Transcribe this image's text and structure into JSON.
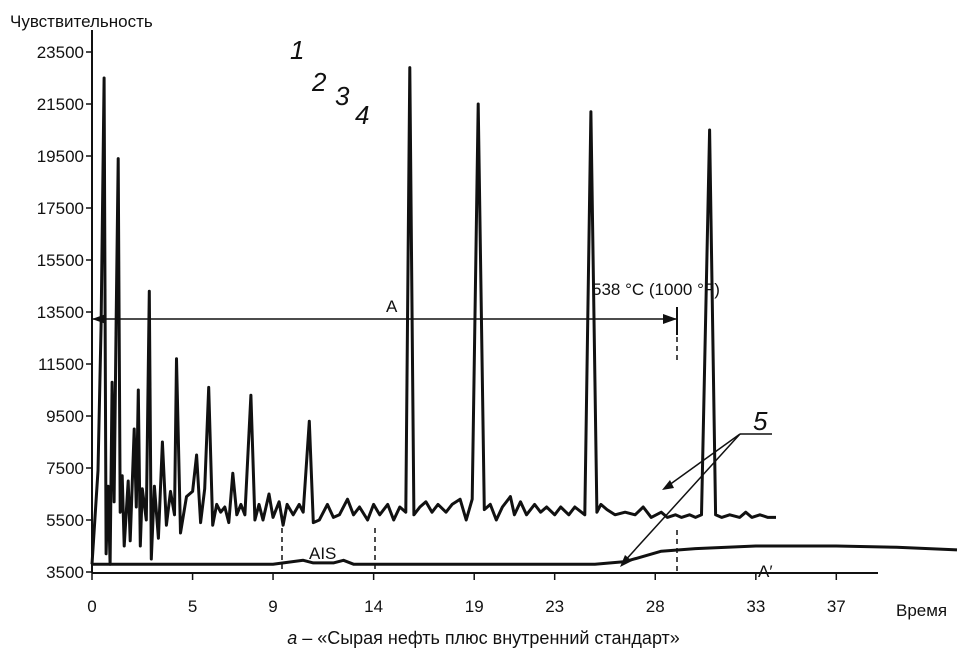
{
  "chart_data": {
    "type": "line",
    "ylabel": "Чувствительность",
    "xlabel": "Время",
    "xlim": [
      0,
      43
    ],
    "ylim": [
      3500,
      23500
    ],
    "x_ticks": [
      0,
      5,
      9,
      14,
      19,
      23,
      28,
      33,
      37
    ],
    "y_ticks": [
      3500,
      5500,
      7500,
      9500,
      11500,
      13500,
      15500,
      17500,
      19500,
      21500,
      23500
    ],
    "grid": false,
    "series": [
      {
        "key": "sample",
        "points": [
          [
            0.0,
            3800
          ],
          [
            0.15,
            5600
          ],
          [
            0.3,
            7400
          ],
          [
            0.45,
            13000
          ],
          [
            0.6,
            22500
          ],
          [
            0.7,
            4200
          ],
          [
            0.8,
            6800
          ],
          [
            0.9,
            3800
          ],
          [
            1.0,
            10800
          ],
          [
            1.1,
            6200
          ],
          [
            1.2,
            13000
          ],
          [
            1.3,
            19400
          ],
          [
            1.4,
            5800
          ],
          [
            1.5,
            7200
          ],
          [
            1.6,
            4500
          ],
          [
            1.8,
            7000
          ],
          [
            1.9,
            4700
          ],
          [
            2.1,
            9000
          ],
          [
            2.2,
            6000
          ],
          [
            2.3,
            10500
          ],
          [
            2.4,
            4500
          ],
          [
            2.5,
            6700
          ],
          [
            2.7,
            5500
          ],
          [
            2.85,
            14300
          ],
          [
            2.95,
            4000
          ],
          [
            3.1,
            6800
          ],
          [
            3.3,
            4800
          ],
          [
            3.5,
            8500
          ],
          [
            3.7,
            5300
          ],
          [
            3.9,
            6600
          ],
          [
            4.1,
            5700
          ],
          [
            4.2,
            11700
          ],
          [
            4.4,
            5000
          ],
          [
            4.7,
            6400
          ],
          [
            5.0,
            6600
          ],
          [
            5.2,
            8000
          ],
          [
            5.4,
            5400
          ],
          [
            5.6,
            6700
          ],
          [
            5.8,
            10600
          ],
          [
            6.0,
            5300
          ],
          [
            6.2,
            6100
          ],
          [
            6.4,
            5800
          ],
          [
            6.6,
            6000
          ],
          [
            6.8,
            5400
          ],
          [
            7.0,
            7300
          ],
          [
            7.2,
            5700
          ],
          [
            7.4,
            6100
          ],
          [
            7.6,
            5700
          ],
          [
            7.9,
            10300
          ],
          [
            8.1,
            5500
          ],
          [
            8.3,
            6100
          ],
          [
            8.5,
            5500
          ],
          [
            8.8,
            6500
          ],
          [
            9.0,
            5600
          ],
          [
            9.3,
            6200
          ],
          [
            9.5,
            5300
          ],
          [
            9.7,
            6100
          ],
          [
            10.0,
            5700
          ],
          [
            10.3,
            6100
          ],
          [
            10.5,
            5800
          ],
          [
            10.8,
            9300
          ],
          [
            11.0,
            5400
          ],
          [
            11.3,
            5500
          ],
          [
            11.7,
            6100
          ],
          [
            12.0,
            5600
          ],
          [
            12.3,
            5700
          ],
          [
            12.7,
            6300
          ],
          [
            13.0,
            5700
          ],
          [
            13.3,
            6000
          ],
          [
            13.7,
            5500
          ],
          [
            14.0,
            6100
          ],
          [
            14.3,
            5700
          ],
          [
            14.7,
            6100
          ],
          [
            15.0,
            5500
          ],
          [
            15.3,
            6000
          ],
          [
            15.6,
            5800
          ],
          [
            15.8,
            22900
          ],
          [
            16.0,
            5700
          ],
          [
            16.3,
            6000
          ],
          [
            16.6,
            6200
          ],
          [
            16.9,
            5800
          ],
          [
            17.2,
            6100
          ],
          [
            17.6,
            5800
          ],
          [
            17.9,
            6100
          ],
          [
            18.3,
            6300
          ],
          [
            18.6,
            5500
          ],
          [
            18.9,
            6300
          ],
          [
            19.2,
            21500
          ],
          [
            19.5,
            5900
          ],
          [
            19.8,
            6100
          ],
          [
            20.1,
            5500
          ],
          [
            20.4,
            6000
          ],
          [
            20.8,
            6400
          ],
          [
            21.0,
            5700
          ],
          [
            21.3,
            6200
          ],
          [
            21.6,
            5700
          ],
          [
            22.0,
            6100
          ],
          [
            22.3,
            5800
          ],
          [
            22.6,
            6000
          ],
          [
            23.0,
            5700
          ],
          [
            23.3,
            6000
          ],
          [
            23.7,
            5700
          ],
          [
            24.0,
            6000
          ],
          [
            24.5,
            5700
          ],
          [
            24.8,
            21200
          ],
          [
            25.1,
            5800
          ],
          [
            25.3,
            6100
          ],
          [
            25.6,
            5900
          ],
          [
            26.0,
            5700
          ],
          [
            26.5,
            5800
          ],
          [
            27.0,
            5700
          ],
          [
            27.4,
            6000
          ],
          [
            27.8,
            5600
          ],
          [
            28.3,
            5800
          ],
          [
            28.6,
            5600
          ],
          [
            29.0,
            5700
          ],
          [
            29.3,
            5600
          ],
          [
            29.7,
            5700
          ],
          [
            30.0,
            5600
          ],
          [
            30.3,
            5700
          ],
          [
            30.7,
            20500
          ],
          [
            31.0,
            5700
          ],
          [
            31.3,
            5600
          ],
          [
            31.7,
            5700
          ],
          [
            32.2,
            5600
          ],
          [
            32.5,
            5800
          ],
          [
            32.8,
            5600
          ],
          [
            33.2,
            5700
          ],
          [
            33.6,
            5600
          ],
          [
            34.0,
            5600
          ]
        ]
      },
      {
        "key": "ais",
        "points": [
          [
            0,
            3800
          ],
          [
            9,
            3800
          ],
          [
            10.5,
            3950
          ],
          [
            11,
            3850
          ],
          [
            12,
            3850
          ],
          [
            12.5,
            3950
          ],
          [
            13,
            3800
          ],
          [
            20,
            3800
          ],
          [
            25,
            3800
          ],
          [
            26.5,
            3900
          ],
          [
            28.3,
            4300
          ],
          [
            30,
            4400
          ],
          [
            33,
            4500
          ],
          [
            37,
            4500
          ],
          [
            40,
            4450
          ],
          [
            43,
            4350
          ]
        ]
      }
    ],
    "annotations": {
      "peak_labels": [
        "1",
        "2",
        "3",
        "4"
      ],
      "curve_label_5": "5",
      "range_label": "A",
      "range_prime_label": "A′",
      "temperature_label": "538 °C (1000 °F)",
      "ais_label": "AIS"
    },
    "caption_prefix": "а",
    "caption_text": " – «Сырая нефть плюс внутренний стандарт»"
  }
}
